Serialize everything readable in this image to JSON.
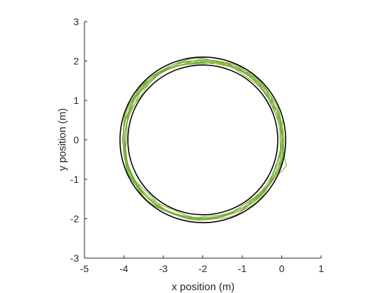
{
  "chart_data": {
    "type": "line",
    "title": "",
    "xlabel": "x position (m)",
    "ylabel": "y position (m)",
    "xlim": [
      -5,
      1
    ],
    "ylim": [
      -3,
      3
    ],
    "xticks": [
      -5,
      -4,
      -3,
      -2,
      -1,
      0,
      1
    ],
    "yticks": [
      -3,
      -2,
      -1,
      0,
      1,
      2,
      3
    ],
    "grid": false,
    "legend": "none",
    "boundaries": [
      {
        "shape": "circle",
        "center": [
          -2,
          0
        ],
        "radius": 1.9,
        "color": "#000000"
      },
      {
        "shape": "circle",
        "center": [
          -2,
          0
        ],
        "radius": 2.1,
        "color": "#000000"
      }
    ],
    "trajectory": {
      "color": "#77ac30",
      "shape": "noisy closed loop around circular track",
      "center": [
        -2,
        0
      ],
      "radius_range": [
        1.93,
        2.09
      ],
      "laps": 7,
      "points": [
        [
          -2.0,
          2.05
        ],
        [
          -1.5,
          1.98
        ],
        [
          -1.0,
          1.75
        ],
        [
          -0.6,
          1.45
        ],
        [
          -0.25,
          1.0
        ],
        [
          -0.05,
          0.5
        ],
        [
          0.03,
          0.0
        ],
        [
          -0.03,
          -0.5
        ],
        [
          -0.23,
          -1.0
        ],
        [
          -0.58,
          -1.42
        ],
        [
          -1.0,
          -1.73
        ],
        [
          -1.5,
          -1.95
        ],
        [
          -2.0,
          -2.03
        ],
        [
          -2.5,
          -1.97
        ],
        [
          -3.0,
          -1.76
        ],
        [
          -3.45,
          -1.42
        ],
        [
          -3.77,
          -1.0
        ],
        [
          -3.97,
          -0.5
        ],
        [
          -4.04,
          0.0
        ],
        [
          -3.98,
          0.5
        ],
        [
          -3.76,
          1.0
        ],
        [
          -3.44,
          1.44
        ],
        [
          -3.0,
          1.75
        ],
        [
          -2.5,
          1.97
        ],
        [
          -2.0,
          2.05
        ]
      ]
    }
  }
}
